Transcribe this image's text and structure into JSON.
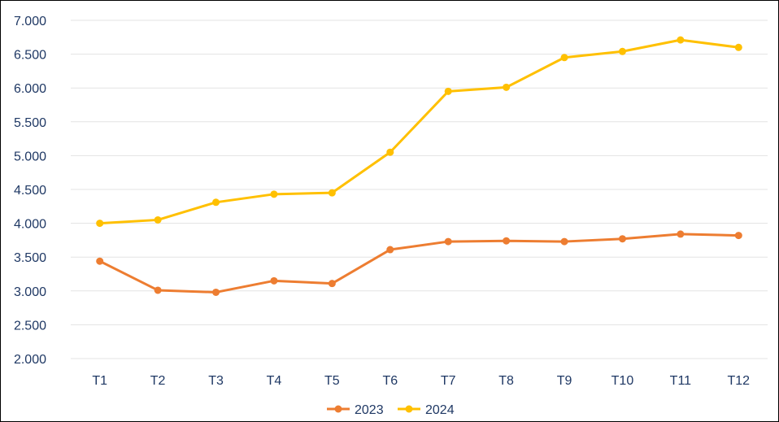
{
  "chart_data": {
    "type": "line",
    "categories": [
      "T1",
      "T2",
      "T3",
      "T4",
      "T5",
      "T6",
      "T7",
      "T8",
      "T9",
      "T10",
      "T11",
      "T12"
    ],
    "series": [
      {
        "name": "2023",
        "color": "#ED7D31",
        "values": [
          3440,
          3010,
          2980,
          3150,
          3110,
          3610,
          3730,
          3740,
          3730,
          3770,
          3840,
          3820
        ]
      },
      {
        "name": "2024",
        "color": "#FFC000",
        "values": [
          4000,
          4050,
          4310,
          4430,
          4450,
          5050,
          5950,
          6010,
          6450,
          6540,
          6710,
          6600
        ]
      }
    ],
    "ylim": [
      2000,
      7000
    ],
    "yticks": [
      2000,
      2500,
      3000,
      3500,
      4000,
      4500,
      5000,
      5500,
      6000,
      6500,
      7000
    ],
    "ytick_labels": [
      "2.000",
      "2.500",
      "3.000",
      "3.500",
      "4.000",
      "4.500",
      "5.000",
      "5.500",
      "6.000",
      "6.500",
      "7.000"
    ],
    "grid": true,
    "legend_position": "bottom",
    "title": "",
    "xlabel": "",
    "ylabel": ""
  }
}
